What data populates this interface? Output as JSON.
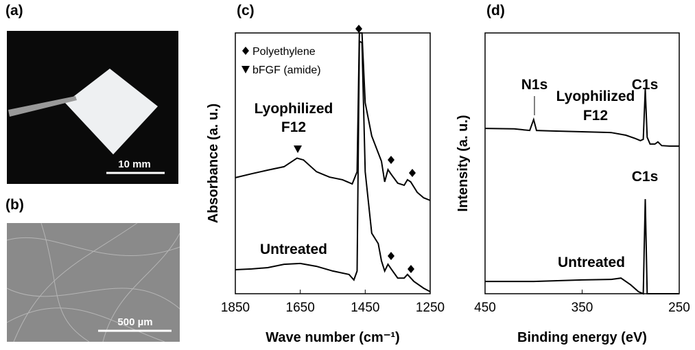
{
  "images": [
    {
      "panel": "(a)",
      "scale_bar": "10 mm"
    },
    {
      "panel": "(b)",
      "scale_bar": "500 µm"
    }
  ],
  "chart_data": [
    {
      "type": "line",
      "panel": "(c)",
      "x_label": "Wave number (cm⁻¹)",
      "y_label": "Absorbance (a. u.)",
      "xlim": [
        1850,
        1250
      ],
      "xticks": [
        1850,
        1650,
        1450,
        1250
      ],
      "ylim": [
        0,
        100
      ],
      "color": "#000000",
      "legend": [
        "Polyethylene",
        "bFGF (amide)"
      ],
      "series": [
        {
          "label": [
            "Lyophilized",
            "F12"
          ],
          "x": [
            1850,
            1800,
            1750,
            1700,
            1660,
            1640,
            1600,
            1560,
            1520,
            1490,
            1475,
            1468,
            1460,
            1450,
            1430,
            1400,
            1390,
            1380,
            1370,
            1350,
            1330,
            1320,
            1310,
            1290,
            1270,
            1250
          ],
          "values": [
            44.5,
            46,
            47.4,
            48.7,
            52,
            51.3,
            46.8,
            44.7,
            43.7,
            42.1,
            46.8,
            100,
            100,
            73.2,
            60.5,
            50.8,
            42.9,
            47.6,
            45.8,
            42.4,
            41.6,
            43.7,
            42.9,
            38.9,
            36.8,
            35.8
          ]
        },
        {
          "label": [
            "Untreated"
          ],
          "x": [
            1850,
            1800,
            1750,
            1700,
            1650,
            1600,
            1550,
            1500,
            1485,
            1475,
            1468,
            1460,
            1450,
            1430,
            1410,
            1400,
            1390,
            1380,
            1370,
            1350,
            1330,
            1320,
            1300,
            1270,
            1250
          ],
          "values": [
            9.2,
            9.5,
            10,
            11.3,
            11.6,
            10.5,
            8.7,
            7.4,
            5.3,
            8.7,
            96.8,
            96.3,
            46.8,
            23.2,
            19.2,
            12.6,
            8.7,
            11.3,
            9.5,
            6,
            6,
            7.4,
            4.7,
            2.1,
            0.8
          ]
        }
      ]
    },
    {
      "type": "line",
      "panel": "(d)",
      "x_label": "Binding energy (eV)",
      "y_label": "Intensity (a. u.)",
      "xlim": [
        450,
        250
      ],
      "xticks": [
        450,
        350,
        250
      ],
      "ylim": [
        0,
        100
      ],
      "color": "#000000",
      "peaks": [
        "N1s",
        "C1s",
        "C1s"
      ],
      "series": [
        {
          "label": [
            "Lyophilized",
            "F12"
          ],
          "x": [
            450,
            420,
            404,
            400,
            397,
            380,
            350,
            320,
            305,
            295,
            290,
            287,
            285,
            283,
            280,
            275,
            272,
            268,
            260,
            250
          ],
          "values": [
            63.4,
            63.2,
            62.6,
            66.8,
            62.6,
            62.4,
            62.1,
            61.8,
            60.8,
            59.5,
            58.7,
            59.2,
            78.4,
            60,
            57.4,
            57.4,
            58.2,
            56.8,
            56.6,
            56.6
          ]
        },
        {
          "label": [
            "Untreated"
          ],
          "x": [
            450,
            400,
            350,
            320,
            310,
            300,
            292,
            287,
            285,
            283,
            270,
            250
          ],
          "values": [
            4.7,
            4.7,
            5.3,
            5.5,
            6,
            3.4,
            0.8,
            0,
            36.3,
            0,
            0,
            0
          ]
        }
      ]
    }
  ]
}
